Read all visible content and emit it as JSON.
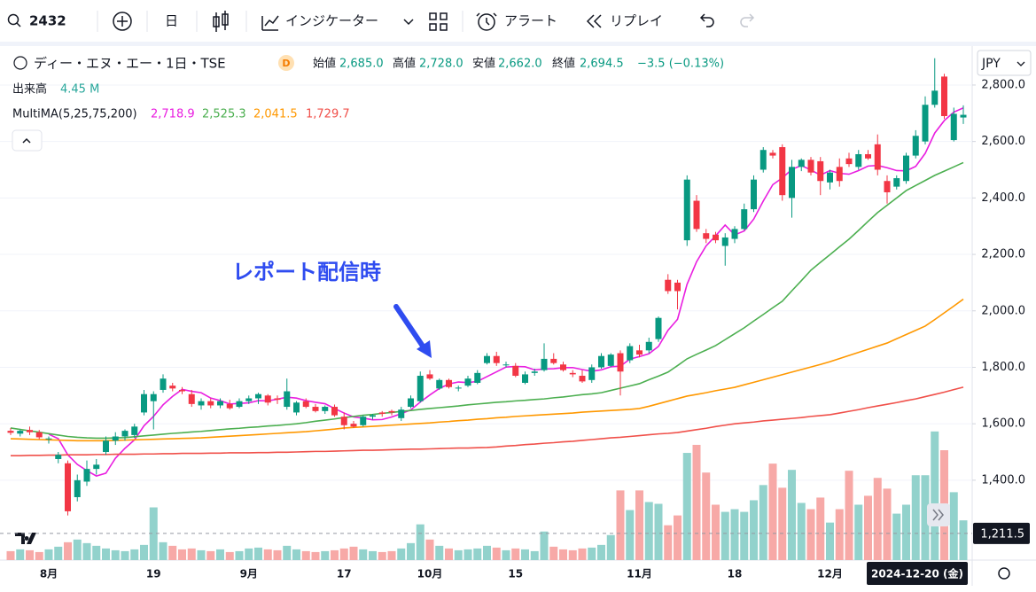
{
  "toolbar": {
    "symbol": "2432",
    "interval": "日",
    "indicators": "インジケーター",
    "alert": "アラート",
    "replay": "リプレイ"
  },
  "legend": {
    "symbol_name": "ディー・エヌ・エー・1日・TSE",
    "badge": "D",
    "open_label": "始値",
    "open": "2,685.0",
    "high_label": "高値",
    "high": "2,728.0",
    "low_label": "安値",
    "low": "2,662.0",
    "close_label": "終値",
    "close": "2,694.5",
    "change": "−3.5 (−0.13%)",
    "volume_label": "出来高",
    "volume": "4.45 M",
    "ma_label": "MultiMA(5,25,75,200)",
    "ma_values": [
      "2,718.9",
      "2,525.3",
      "2,041.5",
      "1,729.7"
    ]
  },
  "currency": "JPY",
  "chart_data": {
    "type": "candlestick",
    "annotation": "レポート配信時",
    "up_color": "#089981",
    "down_color": "#f23645",
    "volume_up_color": "#92d2cc",
    "volume_down_color": "#f7a9a7",
    "categories": [
      null,
      null,
      null,
      null,
      "8月",
      null,
      null,
      null,
      null,
      null,
      null,
      null,
      null,
      null,
      null,
      "19",
      null,
      null,
      null,
      null,
      null,
      null,
      null,
      null,
      null,
      "9月",
      null,
      null,
      null,
      null,
      null,
      null,
      null,
      null,
      null,
      "17",
      null,
      null,
      null,
      null,
      null,
      null,
      null,
      null,
      "10月",
      null,
      null,
      null,
      null,
      null,
      null,
      null,
      null,
      "15",
      null,
      null,
      null,
      null,
      null,
      null,
      null,
      null,
      null,
      null,
      null,
      null,
      "11月",
      null,
      null,
      null,
      null,
      null,
      null,
      null,
      null,
      null,
      "18",
      null,
      null,
      null,
      null,
      null,
      null,
      null,
      null,
      null,
      "12月",
      null,
      null,
      null,
      null,
      null,
      null,
      null,
      null,
      null,
      null,
      null,
      null,
      null,
      null
    ],
    "open": [
      1575,
      1565,
      1578,
      1570,
      1545,
      1475,
      1460,
      1340,
      1395,
      1440,
      1500,
      1540,
      1555,
      1560,
      1640,
      1680,
      1720,
      1735,
      1720,
      1705,
      1665,
      1680,
      1665,
      1670,
      1660,
      1680,
      1690,
      1700,
      1690,
      1660,
      1640,
      1680,
      1660,
      1645,
      1660,
      1625,
      1600,
      1595,
      1625,
      1640,
      1645,
      1620,
      1660,
      1680,
      1775,
      1725,
      1755,
      1725,
      1735,
      1745,
      1815,
      1840,
      1810,
      1805,
      1745,
      1780,
      1790,
      1830,
      1810,
      1780,
      1770,
      1755,
      1800,
      1805,
      1850,
      1825,
      1860,
      1860,
      1900,
      2110,
      2100,
      2250,
      2390,
      2275,
      2270,
      2230,
      2255,
      2290,
      2360,
      2500,
      2560,
      2580,
      2400,
      2510,
      2535,
      2530,
      2455,
      2510,
      2540,
      2510,
      2555,
      2590,
      2460,
      2440,
      2460,
      2550,
      2600,
      2730,
      2830,
      2605,
      2685
    ],
    "high": [
      1585,
      1580,
      1590,
      1578,
      1555,
      1500,
      1470,
      1420,
      1470,
      1475,
      1555,
      1570,
      1580,
      1600,
      1720,
      1715,
      1775,
      1745,
      1730,
      1720,
      1690,
      1690,
      1690,
      1685,
      1690,
      1700,
      1710,
      1705,
      1700,
      1760,
      1680,
      1690,
      1670,
      1665,
      1668,
      1640,
      1610,
      1630,
      1635,
      1645,
      1650,
      1660,
      1700,
      1785,
      1790,
      1760,
      1760,
      1735,
      1770,
      1790,
      1850,
      1855,
      1820,
      1815,
      1785,
      1795,
      1885,
      1850,
      1820,
      1790,
      1790,
      1810,
      1850,
      1850,
      1860,
      1885,
      1880,
      1905,
      1980,
      2130,
      2110,
      2480,
      2410,
      2290,
      2280,
      2275,
      2300,
      2380,
      2480,
      2580,
      2570,
      2590,
      2535,
      2540,
      2545,
      2545,
      2500,
      2540,
      2560,
      2570,
      2570,
      2625,
      2480,
      2480,
      2560,
      2640,
      2760,
      2895,
      2840,
      2720,
      2728
    ],
    "low": [
      1560,
      1555,
      1560,
      1545,
      1530,
      1460,
      1275,
      1325,
      1380,
      1420,
      1490,
      1525,
      1540,
      1550,
      1630,
      1580,
      1710,
      1715,
      1705,
      1660,
      1650,
      1655,
      1655,
      1650,
      1655,
      1670,
      1670,
      1665,
      1670,
      1650,
      1630,
      1655,
      1640,
      1635,
      1625,
      1580,
      1585,
      1590,
      1615,
      1625,
      1630,
      1610,
      1655,
      1675,
      1755,
      1720,
      1725,
      1715,
      1730,
      1740,
      1810,
      1805,
      1800,
      1765,
      1740,
      1770,
      1785,
      1810,
      1785,
      1765,
      1745,
      1745,
      1795,
      1800,
      1700,
      1815,
      1835,
      1850,
      1890,
      2060,
      2005,
      2230,
      2280,
      2240,
      2240,
      2160,
      2240,
      2285,
      2350,
      2490,
      2540,
      2390,
      2330,
      2495,
      2480,
      2410,
      2430,
      2440,
      2510,
      2500,
      2535,
      2480,
      2380,
      2430,
      2450,
      2540,
      2590,
      2720,
      2680,
      2600,
      2662
    ],
    "close": [
      1568,
      1575,
      1570,
      1552,
      1548,
      1490,
      1290,
      1400,
      1440,
      1455,
      1540,
      1555,
      1575,
      1590,
      1705,
      1705,
      1760,
      1725,
      1715,
      1670,
      1680,
      1665,
      1680,
      1655,
      1680,
      1690,
      1705,
      1675,
      1685,
      1715,
      1675,
      1660,
      1645,
      1660,
      1630,
      1595,
      1590,
      1625,
      1630,
      1635,
      1640,
      1650,
      1690,
      1770,
      1760,
      1755,
      1730,
      1728,
      1760,
      1780,
      1840,
      1815,
      1810,
      1770,
      1775,
      1785,
      1830,
      1815,
      1790,
      1775,
      1750,
      1800,
      1840,
      1845,
      1785,
      1875,
      1845,
      1890,
      1975,
      2070,
      2070,
      2465,
      2290,
      2255,
      2250,
      2260,
      2290,
      2360,
      2465,
      2570,
      2550,
      2410,
      2510,
      2535,
      2490,
      2460,
      2490,
      2460,
      2520,
      2555,
      2540,
      2500,
      2420,
      2470,
      2550,
      2620,
      2730,
      2780,
      2690,
      2698,
      2694.5
    ],
    "volume": [
      1.0,
      1.2,
      1.1,
      0.9,
      1.2,
      1.5,
      2.0,
      2.3,
      1.9,
      1.6,
      1.3,
      1.1,
      1.0,
      1.2,
      1.7,
      5.9,
      2.0,
      1.6,
      1.2,
      1.3,
      1.1,
      1.0,
      1.2,
      0.9,
      1.0,
      1.3,
      1.4,
      1.2,
      1.1,
      1.6,
      1.2,
      1.0,
      0.9,
      1.0,
      1.1,
      1.3,
      1.5,
      1.2,
      1.0,
      0.9,
      1.0,
      1.3,
      1.9,
      4.0,
      2.3,
      1.6,
      1.3,
      1.1,
      1.2,
      1.3,
      1.6,
      1.4,
      1.1,
      1.3,
      1.2,
      1.0,
      3.2,
      1.5,
      1.2,
      1.1,
      1.3,
      1.4,
      1.7,
      2.8,
      7.8,
      5.6,
      7.8,
      6.5,
      6.3,
      3.9,
      5.0,
      12.0,
      12.9,
      9.8,
      6.2,
      5.4,
      5.7,
      5.4,
      6.7,
      8.4,
      10.8,
      8.1,
      10.1,
      6.4,
      5.7,
      7.0,
      4.2,
      5.7,
      10.0,
      6.2,
      7.2,
      9.2,
      8.0,
      5.2,
      6.2,
      9.5,
      9.5,
      14.4,
      12.3,
      7.6,
      4.45
    ],
    "volume_lim": [
      0,
      25
    ],
    "overlays": [
      {
        "color": "#e91ee0",
        "values": [
          null,
          null,
          null,
          null,
          1563,
          1547,
          1490,
          1456,
          1434,
          1415,
          1425,
          1478,
          1513,
          1543,
          1593,
          1626,
          1667,
          1697,
          1722,
          1715,
          1710,
          1691,
          1682,
          1670,
          1672,
          1674,
          1682,
          1681,
          1687,
          1694,
          1691,
          1682,
          1676,
          1671,
          1654,
          1638,
          1624,
          1620,
          1614,
          1615,
          1624,
          1636,
          1649,
          1677,
          1702,
          1725,
          1741,
          1748,
          1746,
          1750,
          1767,
          1784,
          1801,
          1803,
          1802,
          1791,
          1794,
          1795,
          1799,
          1799,
          1792,
          1786,
          1791,
          1802,
          1804,
          1829,
          1838,
          1848,
          1874,
          1931,
          1970,
          2094,
          2174,
          2230,
          2266,
          2304,
          2269,
          2283,
          2325,
          2389,
          2447,
          2471,
          2501,
          2515,
          2499,
          2481,
          2497,
          2487,
          2484,
          2497,
          2513,
          2515,
          2507,
          2497,
          2496,
          2512,
          2558,
          2630,
          2674,
          2704,
          2718.9
        ]
      },
      {
        "color": "#4caf50",
        "values": [
          1585,
          1580,
          1575,
          1570,
          1565,
          1560,
          1555,
          1552,
          1550,
          1549,
          1549,
          1550,
          1551,
          1554,
          1557,
          1560,
          1563,
          1566,
          1568,
          1571,
          1573,
          1576,
          1579,
          1582,
          1584,
          1587,
          1589,
          1592,
          1594,
          1597,
          1600,
          1604,
          1609,
          1613,
          1617,
          1622,
          1626,
          1630,
          1633,
          1637,
          1640,
          1644,
          1647,
          1651,
          1654,
          1657,
          1660,
          1663,
          1667,
          1670,
          1673,
          1676,
          1678,
          1681,
          1683,
          1686,
          1688,
          1692,
          1695,
          1699,
          1703,
          1706,
          1710,
          1718,
          1726,
          1734,
          1742,
          1756,
          1769,
          1783,
          1806,
          1830,
          1846,
          1861,
          1877,
          1898,
          1919,
          1940,
          1964,
          1987,
          2011,
          2034,
          2071,
          2107,
          2144,
          2172,
          2199,
          2227,
          2254,
          2285,
          2317,
          2348,
          2374,
          2400,
          2426,
          2444,
          2462,
          2480,
          2495,
          2510,
          2525.3
        ]
      },
      {
        "color": "#ff9800",
        "values": [
          1547,
          1546,
          1545,
          1544,
          1543,
          1542,
          1541,
          1540,
          1540,
          1540,
          1540,
          1541,
          1542,
          1543,
          1544,
          1545,
          1546,
          1547,
          1548,
          1549,
          1550,
          1552,
          1554,
          1556,
          1558,
          1560,
          1562,
          1564,
          1566,
          1568,
          1570,
          1572,
          1575,
          1578,
          1581,
          1585,
          1587,
          1589,
          1591,
          1593,
          1595,
          1597,
          1599,
          1601,
          1603,
          1606,
          1608,
          1611,
          1613,
          1616,
          1618,
          1621,
          1623,
          1626,
          1628,
          1630,
          1632,
          1634,
          1636,
          1638,
          1641,
          1643,
          1645,
          1647,
          1649,
          1651,
          1654,
          1662,
          1671,
          1680,
          1689,
          1698,
          1704,
          1710,
          1717,
          1723,
          1729,
          1738,
          1747,
          1756,
          1765,
          1774,
          1783,
          1792,
          1801,
          1810,
          1820,
          1831,
          1842,
          1853,
          1864,
          1875,
          1886,
          1901,
          1916,
          1931,
          1946,
          1969,
          1993,
          2017,
          2041.5
        ]
      },
      {
        "color": "#f0504a",
        "values": [
          1487,
          1487,
          1488,
          1488,
          1489,
          1489,
          1490,
          1490,
          1490,
          1491,
          1491,
          1492,
          1492,
          1492,
          1493,
          1493,
          1494,
          1494,
          1495,
          1495,
          1495,
          1496,
          1496,
          1497,
          1497,
          1497,
          1498,
          1498,
          1499,
          1499,
          1500,
          1501,
          1502,
          1502,
          1503,
          1504,
          1505,
          1506,
          1506,
          1507,
          1508,
          1509,
          1510,
          1510,
          1511,
          1512,
          1513,
          1514,
          1514,
          1515,
          1516,
          1518,
          1521,
          1523,
          1526,
          1528,
          1531,
          1533,
          1536,
          1538,
          1541,
          1544,
          1547,
          1550,
          1552,
          1555,
          1558,
          1561,
          1564,
          1566,
          1569,
          1574,
          1579,
          1584,
          1590,
          1595,
          1600,
          1603,
          1606,
          1610,
          1613,
          1616,
          1619,
          1622,
          1626,
          1629,
          1632,
          1638,
          1644,
          1650,
          1657,
          1663,
          1669,
          1675,
          1682,
          1688,
          1696,
          1704,
          1712,
          1721,
          1729.7
        ]
      }
    ],
    "ylim": [
      1117,
      2938
    ],
    "yticks": [
      {
        "value": 1400,
        "label": "1,400.0"
      },
      {
        "value": 1600,
        "label": "1,600.0"
      },
      {
        "value": 1800,
        "label": "1,800.0"
      },
      {
        "value": 2000,
        "label": "2,000.0"
      },
      {
        "value": 2200,
        "label": "2,200.0"
      },
      {
        "value": 2400,
        "label": "2,400.0"
      },
      {
        "value": 2600,
        "label": "2,600.0"
      },
      {
        "value": 2800,
        "label": "2,800.0"
      }
    ],
    "grid": true,
    "crosshair": {
      "price": {
        "value": 1211.5,
        "label": "1,211.5"
      },
      "date": "2024-12-20 (金)"
    }
  }
}
